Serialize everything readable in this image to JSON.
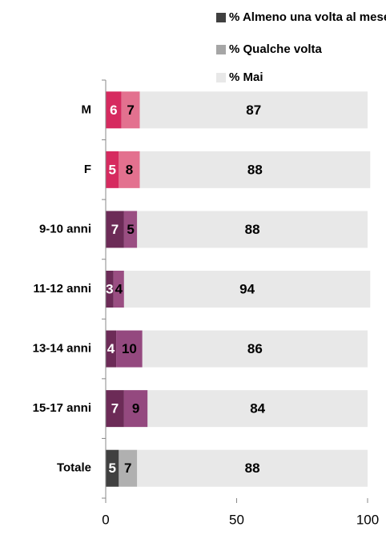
{
  "chart_data": {
    "type": "stacked-barh",
    "categories": [
      "M",
      "F",
      "9-10 anni",
      "11-12 anni",
      "13-14 anni",
      "15-17 anni",
      "Totale"
    ],
    "series": [
      {
        "name": "% Almeno una volta al mese",
        "color": "#404040",
        "colors": [
          "#d62a5f",
          "#d62a5f",
          "#6c2b57",
          "#6c2b57",
          "#6c2b57",
          "#6c2b57",
          "#404040"
        ],
        "values": [
          6,
          5,
          7,
          3,
          4,
          7,
          5
        ]
      },
      {
        "name": "% Qualche volta",
        "color": "#a6a6a6",
        "colors": [
          "#e3718f",
          "#e3718f",
          "#9a4e82",
          "#9a4e82",
          "#94497f",
          "#94497f",
          "#b0b0b0"
        ],
        "values": [
          7,
          8,
          5,
          4,
          10,
          9,
          7
        ]
      },
      {
        "name": "% Mai",
        "color": "#e8e8e8",
        "colors": [
          "#e8e8e8",
          "#e8e8e8",
          "#e8e8e8",
          "#e8e8e8",
          "#e8e8e8",
          "#e8e8e8",
          "#e8e8e8"
        ],
        "values": [
          87,
          88,
          88,
          94,
          86,
          84,
          88
        ]
      }
    ],
    "xlim": [
      0,
      100
    ],
    "xticks": [
      0,
      50,
      100
    ]
  }
}
